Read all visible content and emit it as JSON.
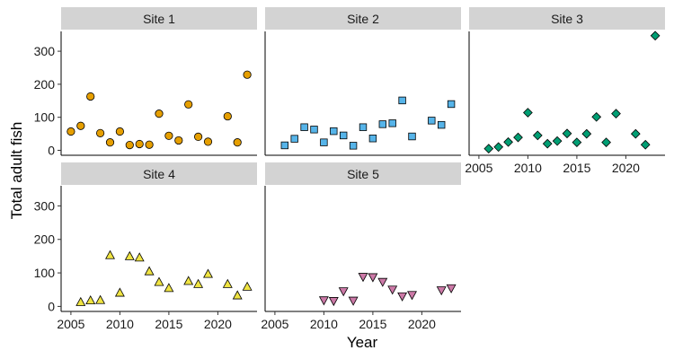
{
  "chart_data": {
    "type": "scatter",
    "xlabel": "Year",
    "ylabel": "Total adult fish",
    "xlim": [
      2004,
      2024
    ],
    "ylim": [
      -15,
      360
    ],
    "xticks": [
      2005,
      2010,
      2015,
      2020
    ],
    "yticks": [
      0,
      100,
      200,
      300
    ],
    "grid": false,
    "legend": "none",
    "panels": [
      {
        "name": "Site 1",
        "shape": "circle",
        "color": "#E69F00",
        "x": [
          2005,
          2006,
          2007,
          2008,
          2009,
          2010,
          2011,
          2012,
          2013,
          2014,
          2015,
          2016,
          2017,
          2018,
          2019,
          2021,
          2022,
          2023
        ],
        "y": [
          57,
          74,
          163,
          52,
          24,
          57,
          16,
          19,
          17,
          111,
          44,
          30,
          139,
          41,
          26,
          103,
          24,
          229
        ]
      },
      {
        "name": "Site 2",
        "shape": "square",
        "color": "#56B4E9",
        "x": [
          2006,
          2007,
          2008,
          2009,
          2010,
          2011,
          2012,
          2013,
          2014,
          2015,
          2016,
          2017,
          2018,
          2019,
          2021,
          2022,
          2023
        ],
        "y": [
          15,
          35,
          70,
          63,
          24,
          58,
          45,
          14,
          70,
          36,
          79,
          82,
          151,
          42,
          90,
          77,
          140
        ]
      },
      {
        "name": "Site 3",
        "shape": "diamond",
        "color": "#009E73",
        "x": [
          2006,
          2007,
          2008,
          2009,
          2010,
          2011,
          2012,
          2013,
          2014,
          2015,
          2016,
          2017,
          2018,
          2019,
          2021,
          2022,
          2023
        ],
        "y": [
          5,
          10,
          25,
          39,
          114,
          45,
          20,
          28,
          51,
          24,
          50,
          101,
          24,
          111,
          50,
          17,
          347
        ]
      },
      {
        "name": "Site 4",
        "shape": "triangle-up",
        "color": "#F0E442",
        "x": [
          2006,
          2007,
          2008,
          2009,
          2010,
          2011,
          2012,
          2013,
          2014,
          2015,
          2017,
          2018,
          2019,
          2021,
          2022,
          2023
        ],
        "y": [
          12,
          17,
          18,
          152,
          40,
          149,
          145,
          104,
          72,
          54,
          75,
          66,
          96,
          66,
          32,
          58
        ]
      },
      {
        "name": "Site 5",
        "shape": "triangle-down",
        "color": "#CC79A7",
        "x": [
          2010,
          2011,
          2012,
          2013,
          2014,
          2015,
          2016,
          2017,
          2018,
          2019,
          2022,
          2023
        ],
        "y": [
          19,
          17,
          46,
          18,
          89,
          88,
          74,
          51,
          31,
          35,
          49,
          55
        ]
      }
    ]
  }
}
